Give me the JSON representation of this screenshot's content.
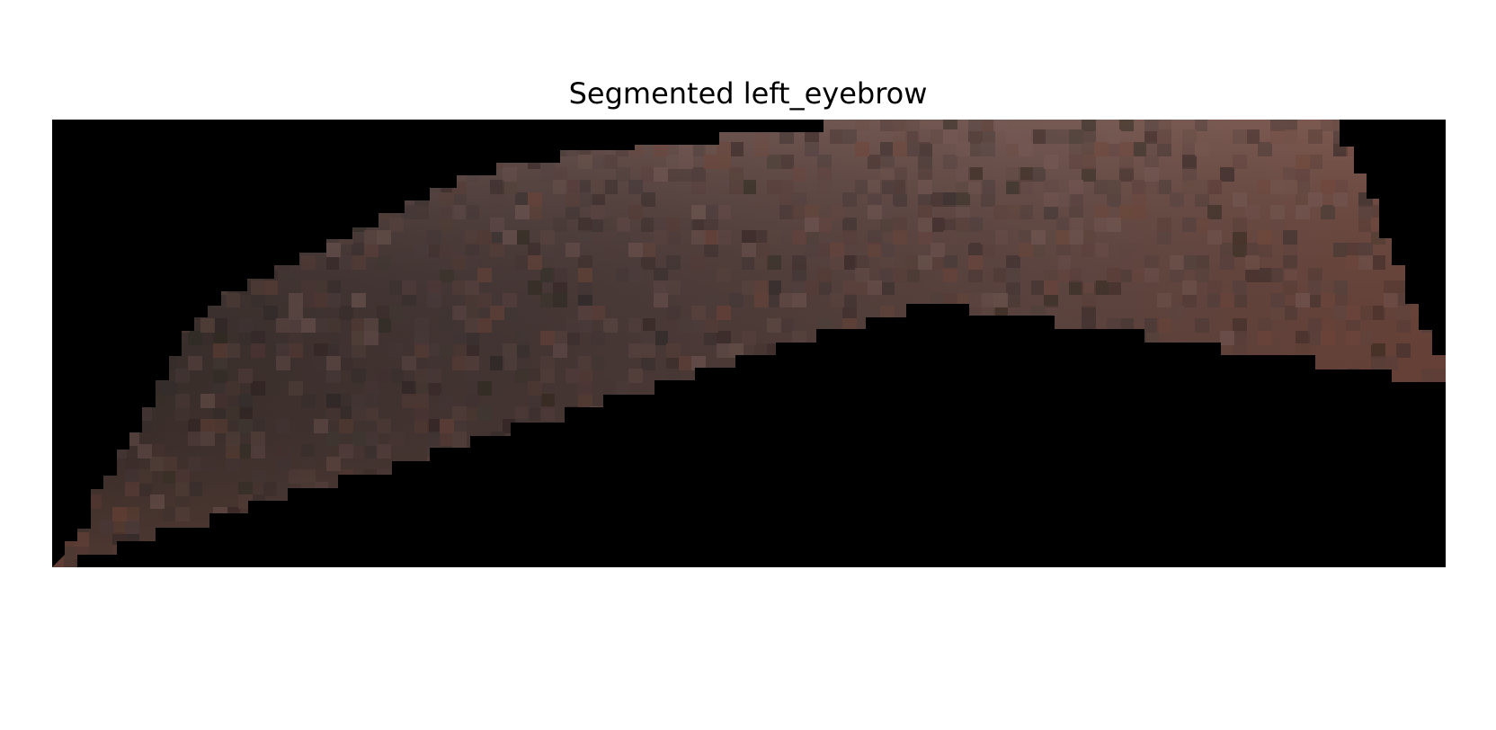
{
  "figure": {
    "title": "Segmented left_eyebrow"
  },
  "image": {
    "subject": "segmented-left-eyebrow",
    "colors": {
      "background": "#000000",
      "brow_dark": "#2e2826",
      "brow_mid": "#3f3433",
      "brow_warm": "#5d4540",
      "brow_highlight": "#765a55",
      "brow_rust": "#6f4438"
    }
  }
}
